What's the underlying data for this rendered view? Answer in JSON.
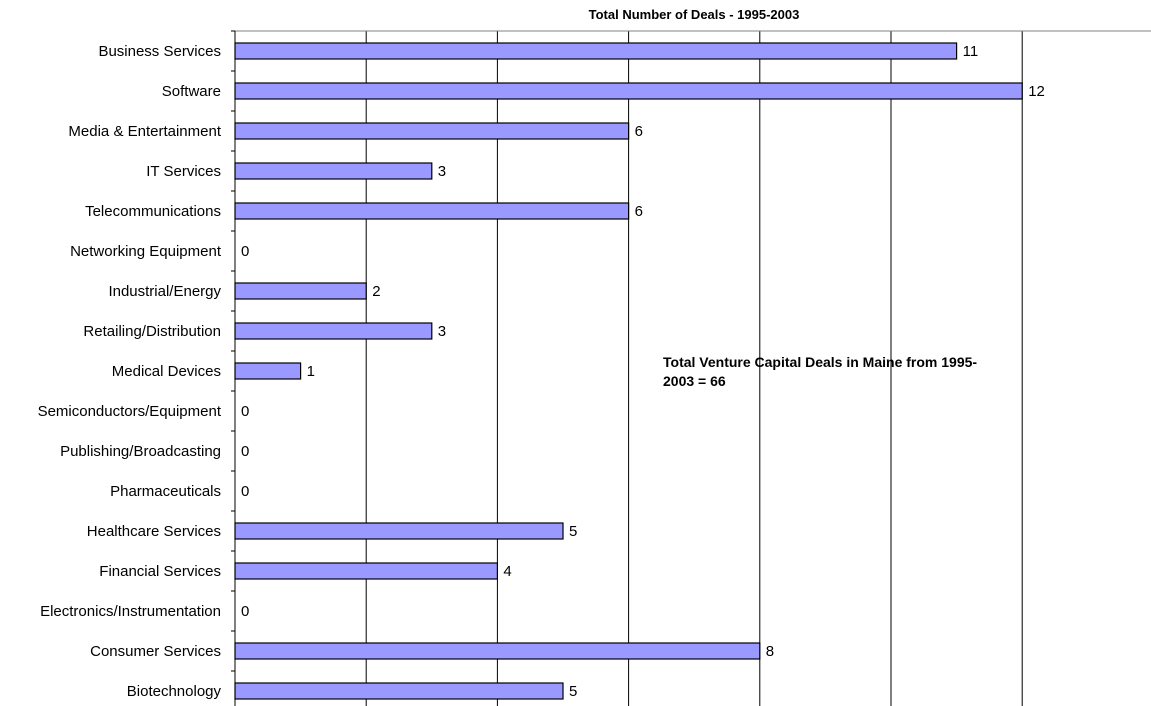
{
  "chart_data": {
    "type": "bar",
    "orientation": "horizontal",
    "title": "Total Number of Deals - 1995-2003",
    "xlabel": "",
    "ylabel": "",
    "categories": [
      "Business Services",
      "Software",
      "Media & Entertainment",
      "IT Services",
      "Telecommunications",
      "Networking Equipment",
      "Industrial/Energy",
      "Retailing/Distribution",
      "Medical Devices",
      "Semiconductors/Equipment",
      "Publishing/Broadcasting",
      "Pharmaceuticals",
      "Healthcare Services",
      "Financial Services",
      "Electronics/Instrumentation",
      "Consumer Services",
      "Biotechnology"
    ],
    "values": [
      11,
      12,
      6,
      3,
      6,
      0,
      2,
      3,
      1,
      0,
      0,
      0,
      5,
      4,
      0,
      8,
      5
    ],
    "xlim": [
      0,
      14
    ],
    "grid": true,
    "legend": "none",
    "bar_color": "#9999FF",
    "bar_edge_color": "#000000",
    "annotation_lines": [
      "Total Venture Capital Deals in Maine from 1995-",
      "2003 = 66"
    ]
  }
}
